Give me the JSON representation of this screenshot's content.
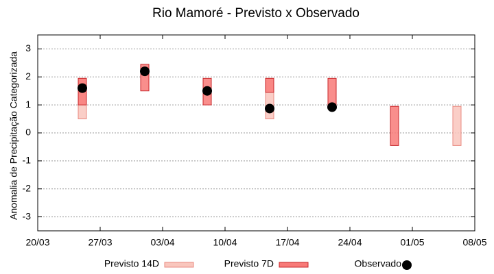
{
  "chart_data": {
    "type": "range-box",
    "title": "Rio Mamoré - Previsto x Observado",
    "ylabel": "Anomalia de Precipitação Categorizada",
    "xlim": [
      0,
      49
    ],
    "xticks": [
      {
        "value": 0,
        "label": "20/03"
      },
      {
        "value": 7,
        "label": "27/03"
      },
      {
        "value": 14,
        "label": "03/04"
      },
      {
        "value": 21,
        "label": "10/04"
      },
      {
        "value": 28,
        "label": "17/04"
      },
      {
        "value": 35,
        "label": "24/04"
      },
      {
        "value": 42,
        "label": "01/05"
      },
      {
        "value": 49,
        "label": "08/05"
      }
    ],
    "ylim": [
      -3.5,
      3.5
    ],
    "yticks": [
      -3,
      -2,
      -1,
      0,
      1,
      2,
      3
    ],
    "grid": true,
    "series": [
      {
        "name": "Previsto 14D",
        "kind": "box",
        "color": "#f9c6bd",
        "stroke": "#e98a80",
        "x": [
          5,
          26,
          47
        ],
        "low": [
          0.5,
          0.5,
          -0.45
        ],
        "high": [
          1.95,
          1.95,
          0.95
        ]
      },
      {
        "name": "Previsto 7D",
        "kind": "box",
        "color": "#f87a78",
        "stroke": "#c8262a",
        "x": [
          5,
          12,
          19,
          26,
          33,
          40
        ],
        "low": [
          1.0,
          1.5,
          1.0,
          1.45,
          0.95,
          -0.45
        ],
        "high": [
          1.95,
          2.45,
          1.95,
          1.95,
          1.95,
          0.95
        ]
      },
      {
        "name": "Observado",
        "kind": "point",
        "color": "#000000",
        "x": [
          5,
          12,
          19,
          26,
          33
        ],
        "values": [
          1.6,
          2.2,
          1.5,
          0.87,
          0.92
        ]
      }
    ]
  }
}
